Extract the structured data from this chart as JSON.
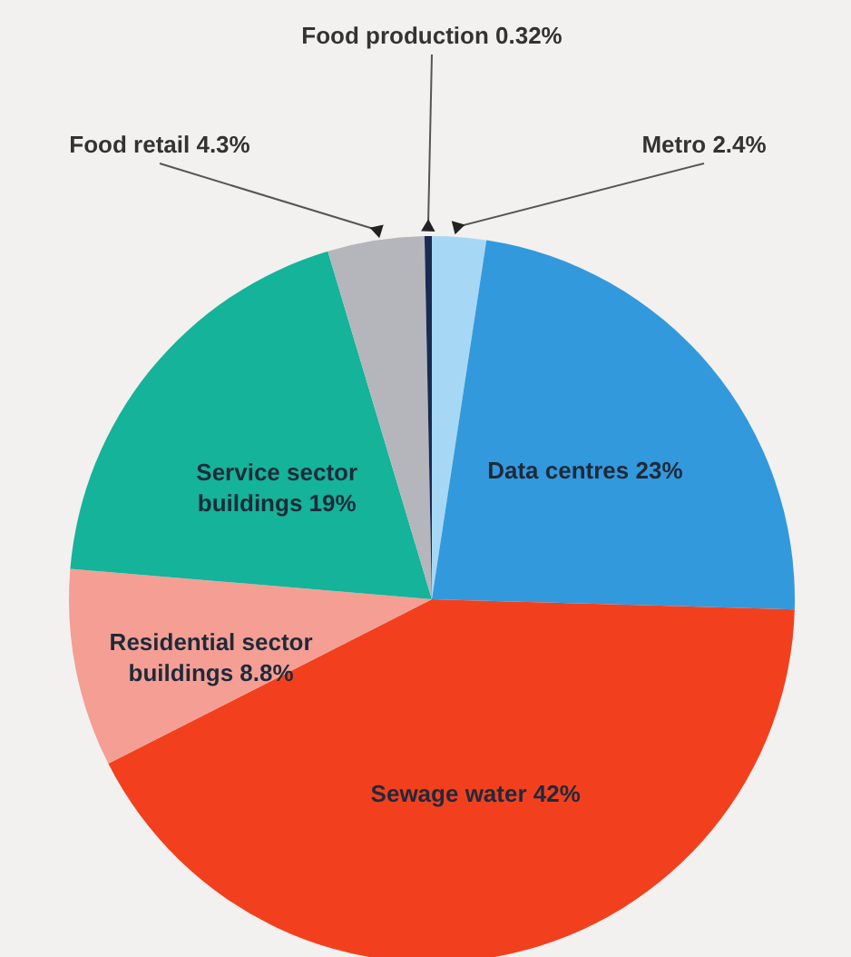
{
  "chart_data": {
    "type": "pie",
    "categories": [
      "Metro",
      "Data centres",
      "Sewage water",
      "Residential sector buildings",
      "Service sector buildings",
      "Food retail",
      "Food production"
    ],
    "values": [
      2.4,
      23,
      42,
      8.8,
      19,
      4.3,
      0.32
    ],
    "value_labels": [
      "2.4%",
      "23%",
      "42%",
      "8.8%",
      "19%",
      "4.3%",
      "0.32%"
    ],
    "colors": [
      "#a6d8f5",
      "#3399dd",
      "#f2401e",
      "#f59e94",
      "#14b39a",
      "#b4b6bb",
      "#1a2a50"
    ]
  }
}
